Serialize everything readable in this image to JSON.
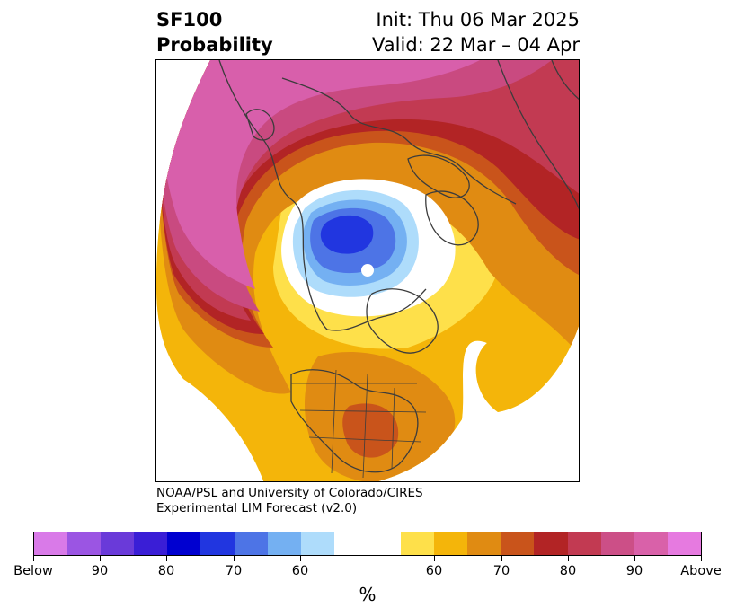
{
  "header": {
    "title_line1": "SF100",
    "title_line2": "Probability",
    "init_text": "Init: Thu 06 Mar 2025",
    "valid_text": "Valid: 22 Mar – 04 Apr"
  },
  "credit": {
    "line1": "NOAA/PSL and University of Colorado/CIRES",
    "line2": "Experimental LIM Forecast (v2.0)"
  },
  "colorbar": {
    "colors": [
      "#d97ae8",
      "#9b55e3",
      "#6a3ad9",
      "#3a1ed6",
      "#0000d0",
      "#2136e0",
      "#4d74e6",
      "#74b0f2",
      "#aedcfb",
      "#ffffff",
      "#ffffff",
      "#fee04a",
      "#f4b50a",
      "#e08b12",
      "#c9541b",
      "#b22425",
      "#c23a52",
      "#cc4f87",
      "#d961a9",
      "#e67ae0"
    ],
    "tick_labels": [
      "Below",
      "90",
      "80",
      "70",
      "60",
      "60",
      "70",
      "80",
      "90",
      "Above"
    ],
    "unit_label": "%"
  },
  "map": {
    "palette": {
      "above_highest": "#d85fab",
      "above_90": "#c94a80",
      "above_85": "#c23a52",
      "above_80": "#b22425",
      "above_75": "#c9541b",
      "above_70": "#e08b12",
      "above_65": "#f4b50a",
      "above_60": "#fee04a",
      "neutral": "#ffffff",
      "below_60": "#aedcfb",
      "below_65": "#74b0f2",
      "below_70": "#4d74e6",
      "below_75": "#2136e0",
      "coast": "#3c3c3c"
    }
  }
}
